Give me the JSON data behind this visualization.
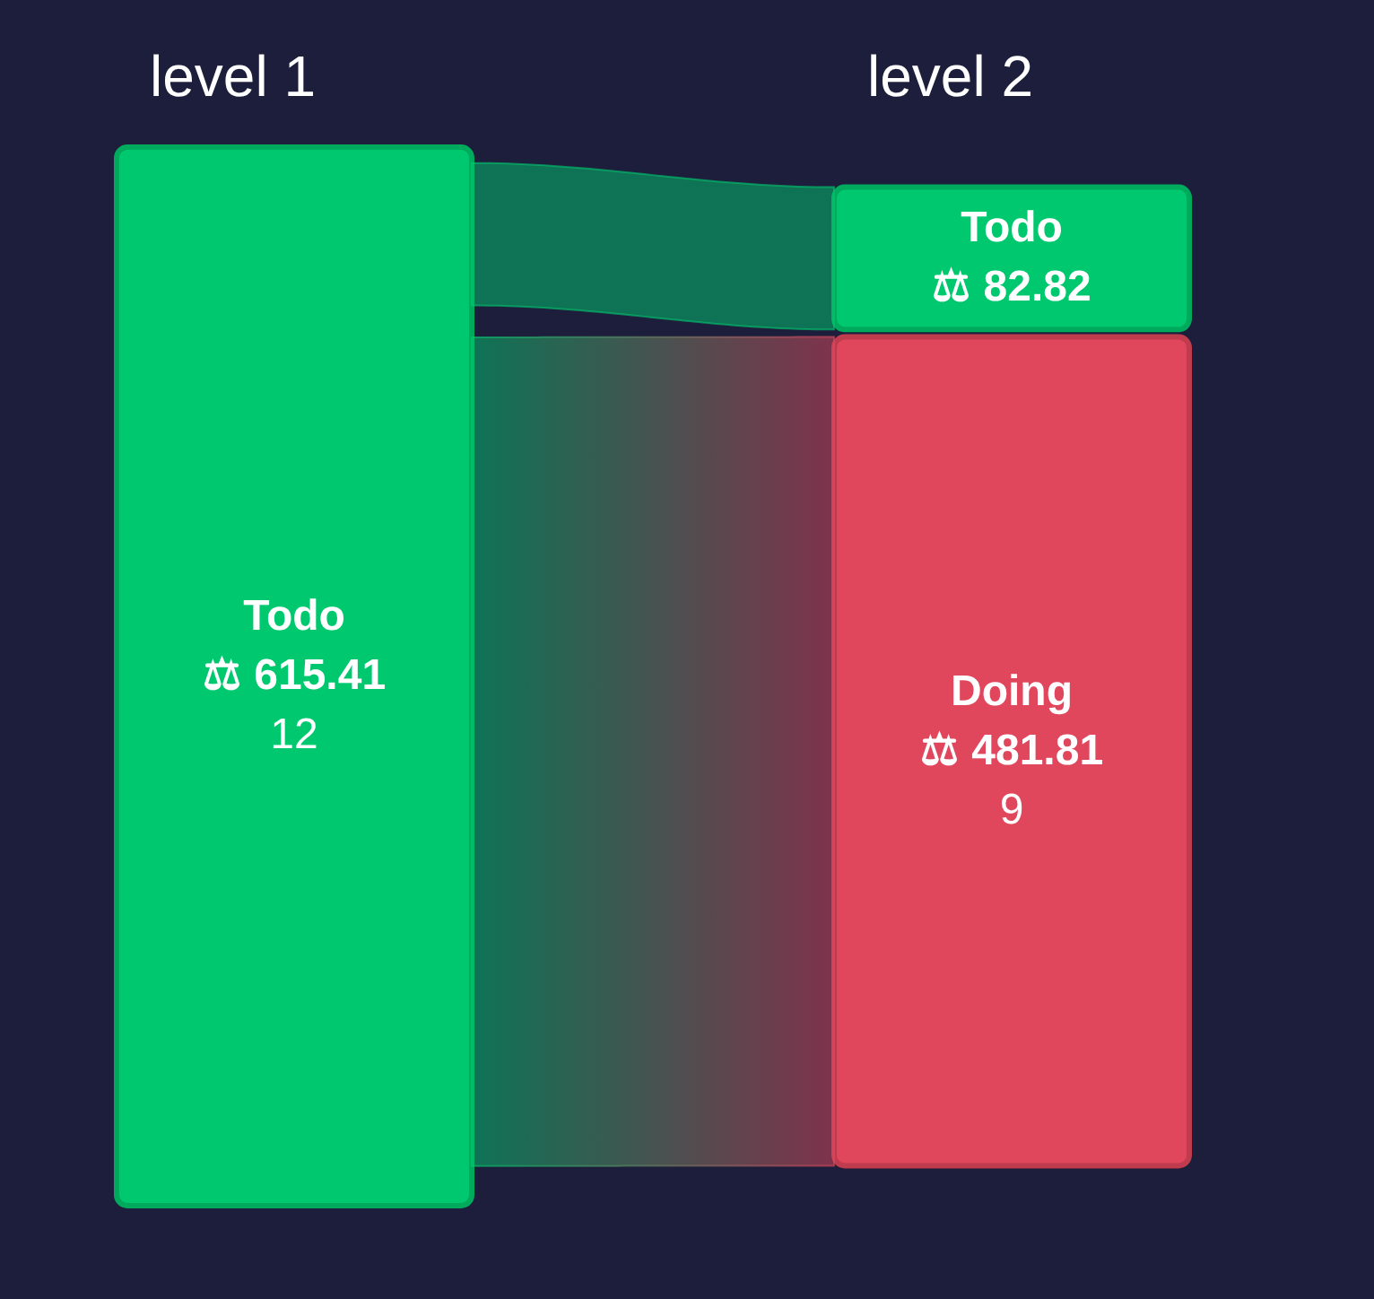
{
  "chart_data": {
    "type": "other",
    "categories": [
      "level 1",
      "level 2"
    ],
    "series": [
      {
        "name": "Todo",
        "color": "#00c86e",
        "values": [
          615.41,
          82.82
        ],
        "value_labels": [
          "⚖ 615.41",
          "⚖ 82.82"
        ]
      },
      {
        "name": "Doing",
        "color": "#e1475c",
        "values": [
          null,
          481.81
        ],
        "value_labels": [
          null,
          "⚖ 481.81"
        ]
      }
    ],
    "annotations": [
      {
        "text": "12",
        "x": "level 1"
      },
      {
        "text": "9",
        "x": "level 2"
      }
    ]
  }
}
